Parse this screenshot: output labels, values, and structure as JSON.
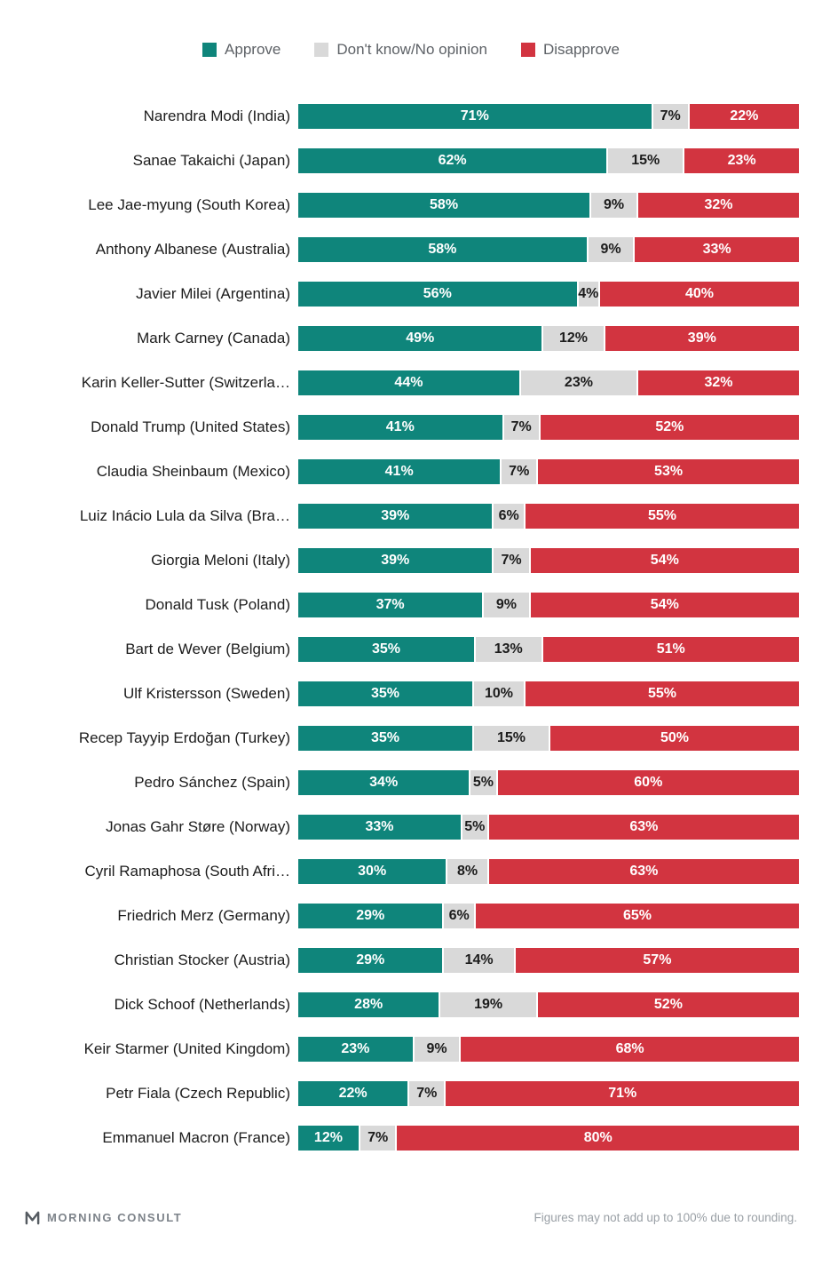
{
  "legend": {
    "items": [
      {
        "label": "Approve",
        "color": "#0f857b"
      },
      {
        "label": "Don't know/No opinion",
        "color": "#d9d9d9"
      },
      {
        "label": "Disapprove",
        "color": "#d23440"
      }
    ]
  },
  "chart_data": {
    "type": "bar",
    "orientation": "horizontal",
    "stacked": true,
    "value_suffix": "%",
    "xlim": [
      0,
      100
    ],
    "grid": false,
    "legend_position": "top",
    "categories": [
      "Narendra Modi (India)",
      "Sanae Takaichi (Japan)",
      "Lee Jae-myung (South Korea)",
      "Anthony Albanese (Australia)",
      "Javier Milei (Argentina)",
      "Mark Carney (Canada)",
      "Karin Keller-Sutter (Switzerla…",
      "Donald Trump (United States)",
      "Claudia Sheinbaum (Mexico)",
      "Luiz Inácio Lula da Silva (Bra…",
      "Giorgia Meloni (Italy)",
      "Donald Tusk (Poland)",
      "Bart de Wever (Belgium)",
      "Ulf Kristersson (Sweden)",
      "Recep Tayyip Erdoğan (Turkey)",
      "Pedro Sánchez (Spain)",
      "Jonas Gahr Støre (Norway)",
      "Cyril Ramaphosa (South Afri…",
      "Friedrich Merz (Germany)",
      "Christian Stocker (Austria)",
      "Dick Schoof (Netherlands)",
      "Keir Starmer (United Kingdom)",
      "Petr Fiala (Czech Republic)",
      "Emmanuel Macron (France)"
    ],
    "series": [
      {
        "name": "Approve",
        "key": "approve",
        "color": "#0f857b",
        "label_color": "#ffffff",
        "values": [
          71,
          62,
          58,
          58,
          56,
          49,
          44,
          41,
          41,
          39,
          39,
          37,
          35,
          35,
          35,
          34,
          33,
          30,
          29,
          29,
          28,
          23,
          22,
          12
        ]
      },
      {
        "name": "Don't know/No opinion",
        "key": "dont-know",
        "color": "#d9d9d9",
        "label_color": "#1c1c1c",
        "values": [
          7,
          15,
          9,
          9,
          4,
          12,
          23,
          7,
          7,
          6,
          7,
          9,
          13,
          10,
          15,
          5,
          5,
          8,
          6,
          14,
          19,
          9,
          7,
          7
        ]
      },
      {
        "name": "Disapprove",
        "key": "disapprove",
        "color": "#d23440",
        "label_color": "#ffffff",
        "values": [
          22,
          23,
          32,
          33,
          40,
          39,
          32,
          52,
          53,
          55,
          54,
          54,
          51,
          55,
          50,
          60,
          63,
          63,
          65,
          57,
          52,
          68,
          71,
          80
        ]
      }
    ]
  },
  "footer": {
    "brand": "MORNING CONSULT",
    "note": "Figures may not add up to 100% due to rounding."
  }
}
